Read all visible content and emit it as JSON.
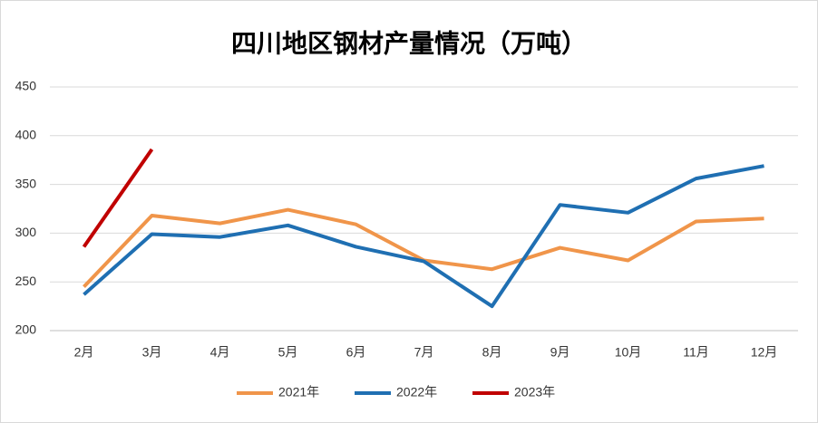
{
  "chart_data": {
    "type": "line",
    "title": "四川地区钢材产量情况（万吨）",
    "categories": [
      "2月",
      "3月",
      "4月",
      "5月",
      "6月",
      "7月",
      "8月",
      "9月",
      "10月",
      "11月",
      "12月"
    ],
    "series": [
      {
        "name": "2021年",
        "color": "#f0954a",
        "values": [
          245,
          318,
          310,
          324,
          309,
          272,
          263,
          285,
          272,
          312,
          315
        ]
      },
      {
        "name": "2022年",
        "color": "#1f6fb2",
        "values": [
          237,
          299,
          296,
          308,
          286,
          271,
          225,
          329,
          321,
          356,
          369
        ]
      },
      {
        "name": "2023年",
        "color": "#c00000",
        "values": [
          286,
          386,
          null,
          null,
          null,
          null,
          null,
          null,
          null,
          null,
          null
        ]
      }
    ],
    "ylim": [
      200,
      450
    ],
    "yticks": [
      200,
      250,
      300,
      350,
      400,
      450
    ],
    "grid": true,
    "legend": "bottom"
  }
}
